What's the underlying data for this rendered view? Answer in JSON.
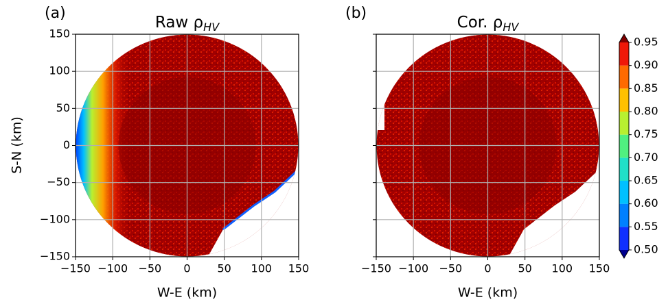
{
  "chart_data": [
    {
      "type": "ppi",
      "panel_label": "(a)",
      "title": {
        "text": "Raw ρ",
        "subscript": "HV"
      },
      "xlabel": "W-E (km)",
      "ylabel": "S-N (km)",
      "xlim": [
        -150,
        150
      ],
      "ylim": [
        -150,
        150
      ],
      "xticks": [
        {
          "value": -150,
          "label": "−150"
        },
        {
          "value": -100,
          "label": "−100"
        },
        {
          "value": -50,
          "label": "−50"
        },
        0,
        50,
        100,
        150
      ],
      "yticks": [
        {
          "value": -150,
          "label": "−150"
        },
        {
          "value": -100,
          "label": "−100"
        },
        {
          "value": -50,
          "label": "−50"
        },
        0,
        50,
        100,
        150
      ],
      "grid": true
    },
    {
      "type": "ppi",
      "panel_label": "(b)",
      "title": {
        "text": "Cor. ρ",
        "subscript": "HV"
      },
      "xlabel": "W-E (km)",
      "xlim": [
        -150,
        150
      ],
      "ylim": [
        -150,
        150
      ],
      "xticks": [
        {
          "value": -150,
          "label": "−150"
        },
        {
          "value": -100,
          "label": "−100"
        },
        {
          "value": -50,
          "label": "−50"
        },
        0,
        50,
        100,
        150
      ],
      "yticks_unlabeled": [
        -150,
        -100,
        -50,
        0,
        50,
        100,
        150
      ],
      "grid": true
    },
    {
      "type": "colorbar",
      "clim": [
        0.5,
        0.95
      ],
      "ticks": [
        {
          "value": 0.5,
          "label": "0.50"
        },
        {
          "value": 0.55,
          "label": "0.55"
        },
        {
          "value": 0.6,
          "label": "0.60"
        },
        {
          "value": 0.65,
          "label": "0.65"
        },
        {
          "value": 0.7,
          "label": "0.70"
        },
        {
          "value": 0.75,
          "label": "0.75"
        },
        {
          "value": 0.8,
          "label": "0.80"
        },
        {
          "value": 0.85,
          "label": "0.85"
        },
        {
          "value": 0.9,
          "label": "0.90"
        },
        {
          "value": 0.95,
          "label": "0.95"
        }
      ],
      "colors": [
        "#1030ff",
        "#0080ff",
        "#00c0ff",
        "#20e0c8",
        "#50f080",
        "#b8f030",
        "#ffc000",
        "#ff6a00",
        "#f01808"
      ],
      "under_color": "#00008f",
      "over_color": "#800000"
    }
  ]
}
